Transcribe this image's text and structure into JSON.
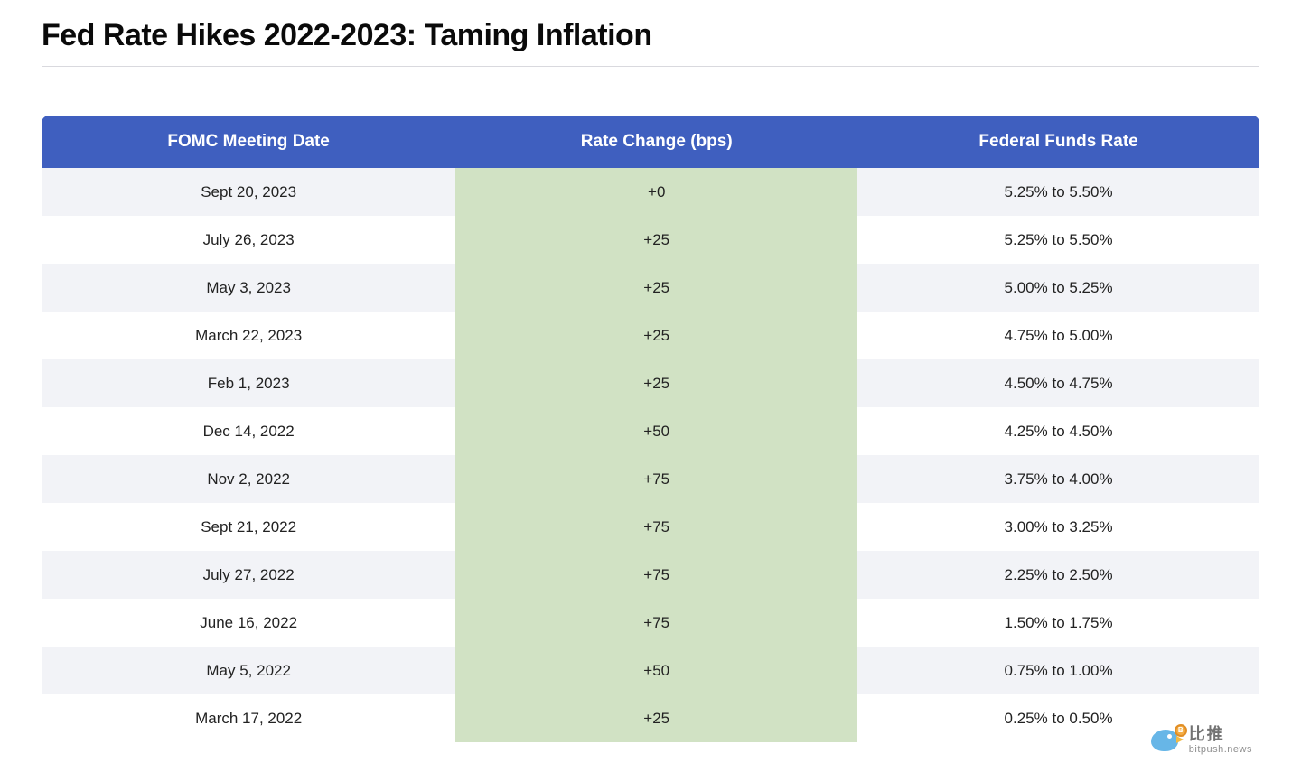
{
  "title": "Fed Rate Hikes 2022-2023: Taming Inflation",
  "table": {
    "type": "table",
    "header_bg": "#3f5fbf",
    "header_text_color": "#ffffff",
    "header_fontsize": 19,
    "body_fontsize": 17,
    "row_alt_bg": "#f2f3f7",
    "row_bg": "#ffffff",
    "highlight_col_bg": "#d1e2c4",
    "border_radius": 8,
    "columns": [
      {
        "key": "date",
        "label": "FOMC Meeting Date",
        "width_pct": 34,
        "align": "center"
      },
      {
        "key": "change",
        "label": "Rate Change (bps)",
        "width_pct": 33,
        "align": "center",
        "highlight": true
      },
      {
        "key": "rate",
        "label": "Federal Funds Rate",
        "width_pct": 33,
        "align": "center"
      }
    ],
    "rows": [
      {
        "date": "Sept 20, 2023",
        "change": "+0",
        "rate": "5.25% to 5.50%"
      },
      {
        "date": "July 26, 2023",
        "change": "+25",
        "rate": "5.25% to 5.50%"
      },
      {
        "date": "May 3, 2023",
        "change": "+25",
        "rate": "5.00% to 5.25%"
      },
      {
        "date": "March 22, 2023",
        "change": "+25",
        "rate": "4.75% to 5.00%"
      },
      {
        "date": "Feb 1, 2023",
        "change": "+25",
        "rate": "4.50% to 4.75%"
      },
      {
        "date": "Dec 14, 2022",
        "change": "+50",
        "rate": "4.25% to 4.50%"
      },
      {
        "date": "Nov 2, 2022",
        "change": "+75",
        "rate": "3.75% to 4.00%"
      },
      {
        "date": "Sept 21, 2022",
        "change": "+75",
        "rate": "3.00% to 3.25%"
      },
      {
        "date": "July 27, 2022",
        "change": "+75",
        "rate": "2.25% to 2.50%"
      },
      {
        "date": "June 16, 2022",
        "change": "+75",
        "rate": "1.50% to 1.75%"
      },
      {
        "date": "May 5, 2022",
        "change": "+50",
        "rate": "0.75% to 1.00%"
      },
      {
        "date": "March 17, 2022",
        "change": "+25",
        "rate": "0.25% to 0.50%"
      }
    ]
  },
  "watermark": {
    "cn": "比推",
    "en": "bitpush.news",
    "bird_color": "#5fb3e6",
    "coin_color": "#f4a93b",
    "coin_symbol": "B"
  }
}
